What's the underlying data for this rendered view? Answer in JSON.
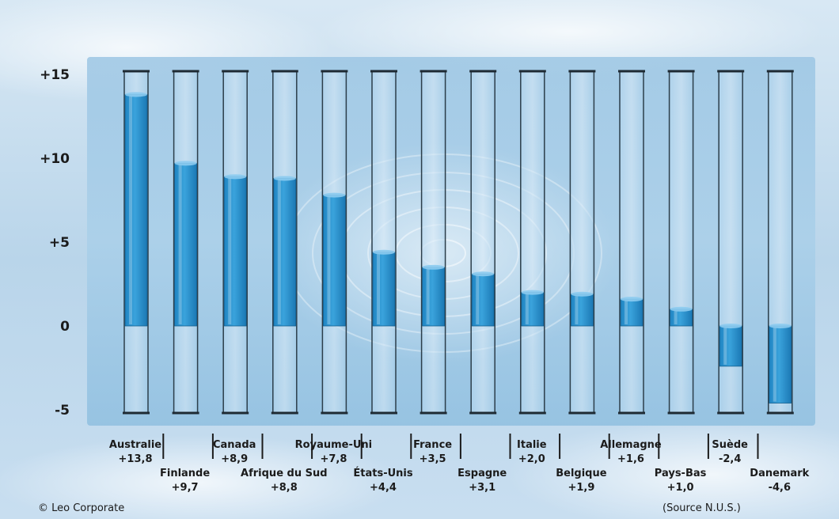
{
  "chart_data": {
    "type": "bar",
    "title": "",
    "xlabel": "",
    "ylabel": "",
    "ylim": [
      -5,
      15
    ],
    "yticks": [
      {
        "value": 15,
        "label": "+15"
      },
      {
        "value": 10,
        "label": "+10"
      },
      {
        "value": 5,
        "label": "+5"
      },
      {
        "value": 0,
        "label": "0"
      },
      {
        "value": -5,
        "label": "-5"
      }
    ],
    "categories": [
      "Australie",
      "Finlande",
      "Canada",
      "Afrique du Sud",
      "Royaume-Uni",
      "États-Unis",
      "France",
      "Espagne",
      "Italie",
      "Belgique",
      "Allemagne",
      "Pays-Bas",
      "Suède",
      "Danemark"
    ],
    "values": [
      13.8,
      9.7,
      8.9,
      8.8,
      7.8,
      4.4,
      3.5,
      3.1,
      2.0,
      1.9,
      1.6,
      1.0,
      -2.4,
      -4.6
    ],
    "value_labels": [
      "+13,8",
      "+9,7",
      "+8,9",
      "+8,8",
      "+7,8",
      "+4,4",
      "+3,5",
      "+3,1",
      "+2,0",
      "+1,9",
      "+1,6",
      "+1,0",
      "-2,4",
      "-4,6"
    ],
    "grid": false,
    "legend": "none",
    "bar_color": "#2a8fcb"
  },
  "footer": {
    "copyright": "© Leo Corporate",
    "source": "(Source N.U.S.)"
  }
}
